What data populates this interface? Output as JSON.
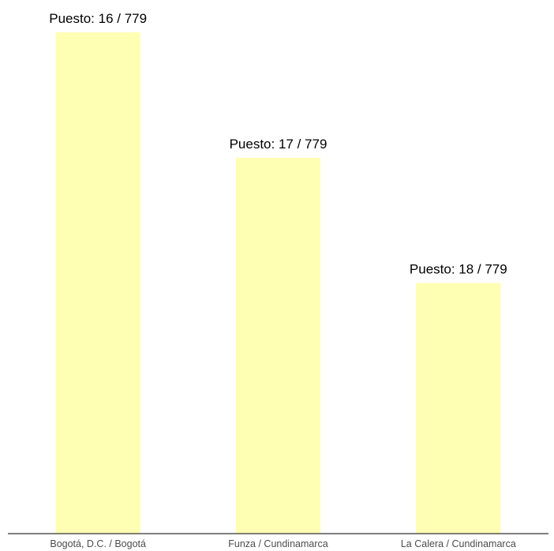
{
  "chart_data": {
    "type": "bar",
    "categories": [
      "Bogotá, D.C. / Bogotá",
      "Funza / Cundinamarca",
      "La Calera / Cundinamarca"
    ],
    "values": [
      1.0,
      0.75,
      0.5
    ],
    "data_labels": [
      "Puesto: 16 / 779",
      "Puesto: 17 / 779",
      "Puesto: 18 / 779"
    ],
    "ylim": [
      0,
      1.06
    ],
    "grid": false,
    "bar_color": "#ffffb3",
    "axis_color": "#333333"
  }
}
